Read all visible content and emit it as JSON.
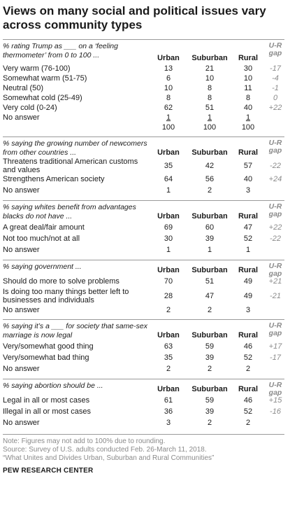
{
  "title": "Views on many social and political issues vary across community types",
  "columns": {
    "urban": "Urban",
    "suburban": "Suburban",
    "rural": "Rural",
    "gap": "U-R gap"
  },
  "sections": [
    {
      "prompt": "% rating Trump as ___ on a ‘feeling thermometer’ from 0 to 100 ...",
      "rows": [
        {
          "label": "Very warm (76-100)",
          "urban": "13",
          "suburban": "21",
          "rural": "30",
          "gap": "-17"
        },
        {
          "label": "Somewhat warm (51-75)",
          "urban": "6",
          "suburban": "10",
          "rural": "10",
          "gap": "-4"
        },
        {
          "label": "Neutral (50)",
          "urban": "10",
          "suburban": "8",
          "rural": "11",
          "gap": "-1"
        },
        {
          "label": "Somewhat cold (25-49)",
          "urban": "8",
          "suburban": "8",
          "rural": "8",
          "gap": "0"
        },
        {
          "label": "Very cold (0-24)",
          "urban": "62",
          "suburban": "51",
          "rural": "40",
          "gap": "+22"
        },
        {
          "label": "No answer",
          "urban": "1",
          "suburban": "1",
          "rural": "1",
          "gap": ""
        },
        {
          "label": "",
          "urban": "100",
          "suburban": "100",
          "rural": "100",
          "gap": ""
        }
      ]
    },
    {
      "prompt": "% saying the growing number of newcomers from other countries ...",
      "rows": [
        {
          "label": "Threatens traditional American customs and values",
          "urban": "35",
          "suburban": "42",
          "rural": "57",
          "gap": "-22"
        },
        {
          "label": "Strengthens American society",
          "urban": "64",
          "suburban": "56",
          "rural": "40",
          "gap": "+24"
        },
        {
          "label": "No answer",
          "urban": "1",
          "suburban": "2",
          "rural": "3",
          "gap": ""
        }
      ]
    },
    {
      "prompt": "% saying whites benefit from advantages blacks do not have ...",
      "rows": [
        {
          "label": "A great deal/fair amount",
          "urban": "69",
          "suburban": "60",
          "rural": "47",
          "gap": "+22"
        },
        {
          "label": "Not too much/not at all",
          "urban": "30",
          "suburban": "39",
          "rural": "52",
          "gap": "-22"
        },
        {
          "label": "No answer",
          "urban": "1",
          "suburban": "1",
          "rural": "1",
          "gap": ""
        }
      ]
    },
    {
      "prompt": "% saying government ...",
      "rows": [
        {
          "label": "Should do more to solve problems",
          "urban": "70",
          "suburban": "51",
          "rural": "49",
          "gap": "+21"
        },
        {
          "label": "Is doing too many things better left to businesses and individuals",
          "urban": "28",
          "suburban": "47",
          "rural": "49",
          "gap": "-21"
        },
        {
          "label": "No answer",
          "urban": "2",
          "suburban": "2",
          "rural": "3",
          "gap": ""
        }
      ]
    },
    {
      "prompt": "% saying it’s a ___ for society that same-sex marriage is now legal",
      "rows": [
        {
          "label": "Very/somewhat good thing",
          "urban": "63",
          "suburban": "59",
          "rural": "46",
          "gap": "+17"
        },
        {
          "label": "Very/somewhat bad thing",
          "urban": "35",
          "suburban": "39",
          "rural": "52",
          "gap": "-17"
        },
        {
          "label": "No answer",
          "urban": "2",
          "suburban": "2",
          "rural": "2",
          "gap": ""
        }
      ]
    },
    {
      "prompt": "% saying abortion should be ...",
      "rows": [
        {
          "label": "Legal in all or most cases",
          "urban": "61",
          "suburban": "59",
          "rural": "46",
          "gap": "+15"
        },
        {
          "label": "Illegal in all or most cases",
          "urban": "36",
          "suburban": "39",
          "rural": "52",
          "gap": "-16"
        },
        {
          "label": "No answer",
          "urban": "3",
          "suburban": "2",
          "rural": "2",
          "gap": ""
        }
      ]
    }
  ],
  "footer": {
    "note": "Note: Figures may not add to 100% due to rounding.",
    "source": "Source: Survey of U.S. adults conducted Feb. 26-March 11, 2018.",
    "report": "“What Unites and Divides Urban, Suburban and Rural Communities”",
    "brand": "PEW RESEARCH CENTER"
  }
}
